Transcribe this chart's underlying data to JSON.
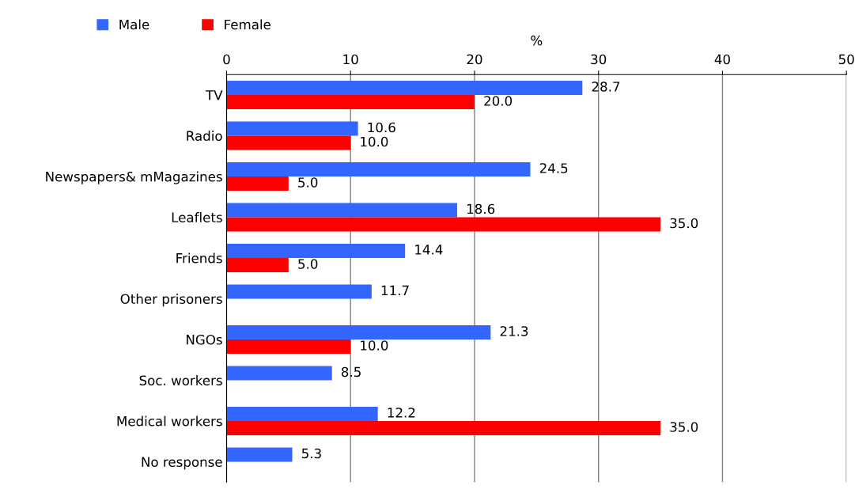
{
  "chart_data": {
    "type": "bar",
    "orientation": "horizontal",
    "xlabel": "%",
    "categories": [
      "TV",
      "Radio",
      "Newspapers& mMagazines",
      "Leaflets",
      "Friends",
      "Other prisoners",
      "NGOs",
      "Soc. workers",
      "Medical workers",
      "No response"
    ],
    "series": [
      {
        "name": "Male",
        "color": "#3366ff",
        "values": [
          28.7,
          10.6,
          24.5,
          18.6,
          14.4,
          11.7,
          21.3,
          8.5,
          12.2,
          5.3
        ],
        "value_labels": [
          "28.7",
          "10.6",
          "24.5",
          "18.6",
          "14.4",
          "11.7",
          "21.3",
          "8.5",
          "12.2",
          "5.3"
        ]
      },
      {
        "name": "Female",
        "color": "#ff0000",
        "values": [
          20,
          10,
          5,
          35,
          5,
          null,
          10,
          null,
          35,
          null
        ],
        "value_labels": [
          "20.0",
          "10.0",
          "5.0",
          "35.0",
          "5.0",
          null,
          "10.0",
          null,
          "35.0",
          null
        ]
      }
    ],
    "xlim": [
      0,
      50
    ],
    "xticks": [
      0,
      10,
      20,
      30,
      40,
      50
    ],
    "grid": "x",
    "legend": "top left"
  }
}
